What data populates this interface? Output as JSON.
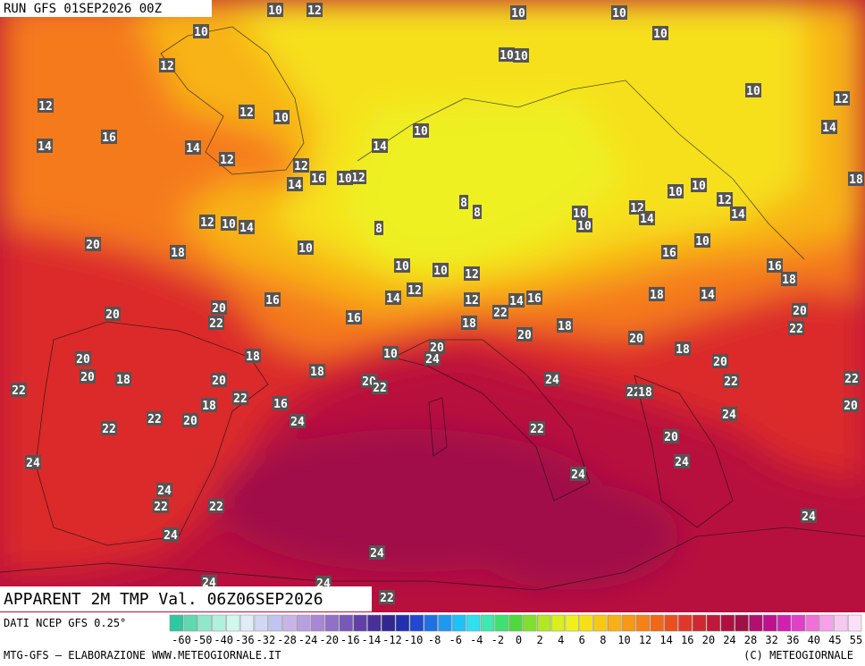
{
  "header": {
    "run": "RUN GFS 01SEP2026 00Z"
  },
  "map": {
    "caption": "APPARENT 2M TMP Val. 06Z06SEP2026",
    "labels": [
      10,
      12,
      10,
      10,
      10,
      10,
      12,
      10,
      10,
      12,
      12,
      10,
      10,
      12,
      14,
      16,
      14,
      12,
      14,
      10,
      14,
      12,
      16,
      14,
      12,
      10,
      12,
      10,
      14,
      10,
      20,
      18,
      8,
      8,
      8,
      10,
      10,
      12,
      14,
      10,
      10,
      12,
      14,
      10,
      16,
      16,
      18,
      18,
      10,
      10,
      12,
      12,
      14,
      12,
      16,
      14,
      16,
      18,
      14,
      20,
      20,
      22,
      16,
      22,
      18,
      18,
      20,
      22,
      20,
      20,
      18,
      10,
      20,
      24,
      18,
      18,
      20,
      20,
      18,
      22,
      20,
      22,
      18,
      16,
      20,
      22,
      24,
      20,
      22,
      22,
      22,
      18,
      22,
      20,
      24,
      22,
      22,
      24,
      20,
      20,
      24,
      24,
      24,
      24,
      22,
      22,
      24,
      24,
      24,
      24,
      24,
      22
    ]
  },
  "footer": {
    "source": "DATI NCEP GFS 0.25°",
    "credit": "MTG-GFS — ELABORAZIONE WWW.METEOGIORNALE.IT",
    "copyright": "(C) METEOGIORNALE"
  },
  "colorbar": {
    "labels": [
      -60,
      -50,
      -40,
      -36,
      -32,
      -28,
      -24,
      -20,
      -16,
      -14,
      -12,
      -10,
      -8,
      -6,
      -4,
      -2,
      0,
      2,
      4,
      6,
      8,
      10,
      12,
      14,
      16,
      20,
      24,
      28,
      32,
      36,
      40,
      45,
      55
    ],
    "colors": [
      "#30c8a0",
      "#60d8b0",
      "#90e8c8",
      "#b0f0dc",
      "#d0f8ec",
      "#e0ecf8",
      "#d0d8f4",
      "#c0c4f0",
      "#c8b4e8",
      "#b8a0e0",
      "#a888d4",
      "#9070c8",
      "#7858b8",
      "#6040a8",
      "#483098",
      "#302890",
      "#2030b0",
      "#2048d0",
      "#2070e0",
      "#2098f0",
      "#20c0f8",
      "#30e0f0",
      "#40e8b0",
      "#40e070",
      "#50d840",
      "#80e030",
      "#b0e828",
      "#d8f020",
      "#f0f020",
      "#f8e018",
      "#f8c818",
      "#f8b018",
      "#f89818",
      "#f88018",
      "#f06818",
      "#e85020",
      "#e03828",
      "#d02830",
      "#c01838",
      "#b01040",
      "#a01048",
      "#b01070",
      "#c01090",
      "#d020b0",
      "#e040c8",
      "#f070d8",
      "#f8a0e8",
      "#f8c8f0",
      "#fce0f8"
    ]
  }
}
